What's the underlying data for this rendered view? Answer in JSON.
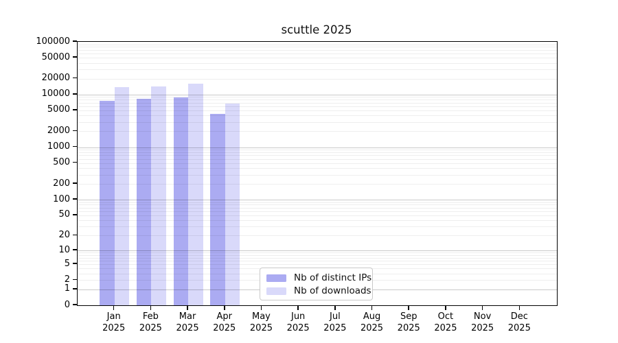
{
  "title": "scuttle 2025",
  "chart_data": {
    "type": "bar",
    "title": "scuttle 2025",
    "y_scale": "log10(1+v)",
    "ylim": [
      0,
      100000
    ],
    "yticks": [
      0,
      1,
      2,
      5,
      10,
      20,
      50,
      100,
      200,
      500,
      1000,
      2000,
      5000,
      10000,
      20000,
      50000,
      100000
    ],
    "grid": true,
    "categories": [
      "Jan",
      "Feb",
      "Mar",
      "Apr",
      "May",
      "Jun",
      "Jul",
      "Aug",
      "Sep",
      "Oct",
      "Nov",
      "Dec"
    ],
    "x_year_label": "2025",
    "series": [
      {
        "name": "Nb of distinct IPs",
        "color": "#ababf2",
        "values": [
          7600,
          8200,
          8800,
          4300,
          0,
          0,
          0,
          0,
          0,
          0,
          0,
          0
        ]
      },
      {
        "name": "Nb of downloads",
        "color": "#d9d9fa",
        "values": [
          13800,
          14300,
          16200,
          6700,
          0,
          0,
          0,
          0,
          0,
          0,
          0,
          0
        ]
      }
    ],
    "legend": {
      "position": "lower center",
      "items": [
        {
          "label": "Nb of distinct IPs",
          "color": "#ababf2"
        },
        {
          "label": "Nb of downloads",
          "color": "#d9d9fa"
        }
      ]
    }
  }
}
